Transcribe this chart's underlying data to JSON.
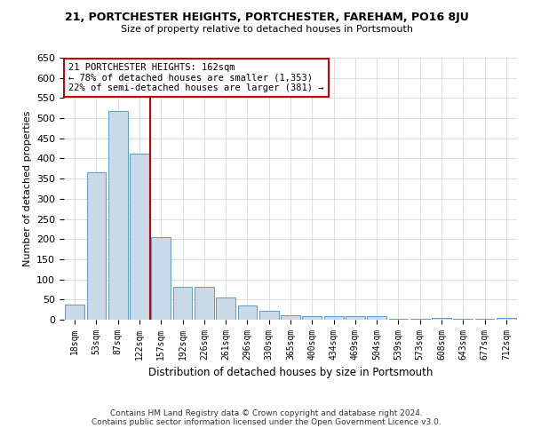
{
  "title": "21, PORTCHESTER HEIGHTS, PORTCHESTER, FAREHAM, PO16 8JU",
  "subtitle": "Size of property relative to detached houses in Portsmouth",
  "xlabel": "Distribution of detached houses by size in Portsmouth",
  "ylabel": "Number of detached properties",
  "bar_color": "#c9d9e8",
  "bar_edge_color": "#5b9bd5",
  "categories": [
    "18sqm",
    "53sqm",
    "87sqm",
    "122sqm",
    "157sqm",
    "192sqm",
    "226sqm",
    "261sqm",
    "296sqm",
    "330sqm",
    "365sqm",
    "400sqm",
    "434sqm",
    "469sqm",
    "504sqm",
    "539sqm",
    "573sqm",
    "608sqm",
    "643sqm",
    "677sqm",
    "712sqm"
  ],
  "values": [
    38,
    365,
    517,
    413,
    205,
    82,
    82,
    55,
    35,
    22,
    12,
    8,
    8,
    8,
    8,
    3,
    3,
    5,
    3,
    3,
    5
  ],
  "ylim": [
    0,
    650
  ],
  "yticks": [
    0,
    50,
    100,
    150,
    200,
    250,
    300,
    350,
    400,
    450,
    500,
    550,
    600,
    650
  ],
  "property_line_x": 4,
  "annotation_text": "21 PORTCHESTER HEIGHTS: 162sqm\n← 78% of detached houses are smaller (1,353)\n22% of semi-detached houses are larger (381) →",
  "annotation_box_color": "#ffffff",
  "annotation_border_color": "#cc0000",
  "footer_line1": "Contains HM Land Registry data © Crown copyright and database right 2024.",
  "footer_line2": "Contains public sector information licensed under the Open Government Licence v3.0.",
  "grid_color": "#d0d0d0",
  "background_color": "#ffffff"
}
